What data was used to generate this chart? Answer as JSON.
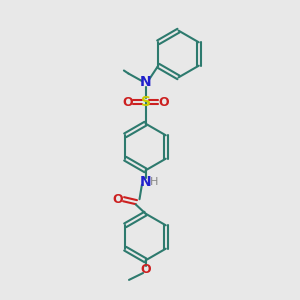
{
  "bg_color": "#e8e8e8",
  "ring_color": "#2d7a6e",
  "bond_width": 1.5,
  "N_color": "#2020cc",
  "O_color": "#cc2020",
  "S_color": "#cccc00",
  "H_color": "#888888",
  "text_fontsize": 8.5,
  "figsize": [
    3.0,
    3.0
  ],
  "dpi": 100,
  "xlim": [
    0,
    10
  ],
  "ylim": [
    0,
    10
  ]
}
